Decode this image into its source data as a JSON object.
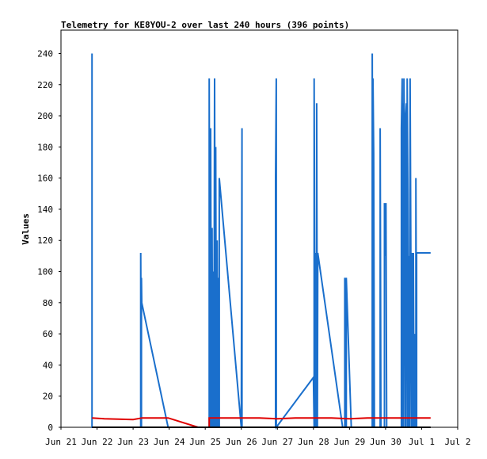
{
  "chart_data": {
    "type": "line",
    "title": "Telemetry for KE8YOU-2 over last 240 hours (396 points)",
    "xlabel": "",
    "ylabel": "Values",
    "x_unit": "days",
    "xlim": [
      0,
      11
    ],
    "ylim": [
      0,
      255
    ],
    "x_ticks": [
      {
        "value": 0,
        "label": "Jun 21"
      },
      {
        "value": 1,
        "label": "Jun 22"
      },
      {
        "value": 2,
        "label": "Jun 23"
      },
      {
        "value": 3,
        "label": "Jun 24"
      },
      {
        "value": 4,
        "label": "Jun 25"
      },
      {
        "value": 5,
        "label": "Jun 26"
      },
      {
        "value": 6,
        "label": "Jun 27"
      },
      {
        "value": 7,
        "label": "Jun 28"
      },
      {
        "value": 8,
        "label": "Jun 29"
      },
      {
        "value": 9,
        "label": "Jun 30"
      },
      {
        "value": 10,
        "label": "Jul 1"
      },
      {
        "value": 11,
        "label": "Jul 2"
      }
    ],
    "y_ticks": [
      0,
      20,
      40,
      60,
      80,
      100,
      120,
      140,
      160,
      180,
      200,
      220,
      240
    ],
    "grid": false,
    "legend": "none",
    "series": [
      {
        "color": "#1a6fcc",
        "points": [
          [
            0.86,
            0
          ],
          [
            0.86,
            240
          ],
          [
            0.86,
            0
          ],
          [
            2.21,
            0
          ],
          [
            2.21,
            112
          ],
          [
            2.23,
            0
          ],
          [
            2.23,
            96
          ],
          [
            2.24,
            80
          ],
          [
            2.97,
            0
          ],
          [
            4.11,
            0
          ],
          [
            4.11,
            224
          ],
          [
            4.13,
            0
          ],
          [
            4.13,
            112
          ],
          [
            4.15,
            192
          ],
          [
            4.17,
            0
          ],
          [
            4.19,
            128
          ],
          [
            4.21,
            0
          ],
          [
            4.21,
            100
          ],
          [
            4.24,
            0
          ],
          [
            4.26,
            224
          ],
          [
            4.28,
            0
          ],
          [
            4.29,
            180
          ],
          [
            4.31,
            0
          ],
          [
            4.33,
            120
          ],
          [
            4.35,
            0
          ],
          [
            4.37,
            96
          ],
          [
            4.39,
            0
          ],
          [
            4.39,
            160
          ],
          [
            5.0,
            0
          ],
          [
            5.02,
            192
          ],
          [
            5.02,
            0
          ],
          [
            5.95,
            0
          ],
          [
            5.95,
            160
          ],
          [
            5.97,
            224
          ],
          [
            5.97,
            0
          ],
          [
            7.0,
            32
          ],
          [
            7.02,
            0
          ],
          [
            7.02,
            224
          ],
          [
            7.05,
            0
          ],
          [
            7.07,
            112
          ],
          [
            7.09,
            0
          ],
          [
            7.09,
            208
          ],
          [
            7.11,
            0
          ],
          [
            7.12,
            112
          ],
          [
            7.81,
            0
          ],
          [
            7.87,
            0
          ],
          [
            7.87,
            96
          ],
          [
            7.89,
            0
          ],
          [
            7.89,
            96
          ],
          [
            7.91,
            0
          ],
          [
            7.91,
            96
          ],
          [
            8.05,
            0
          ],
          [
            8.63,
            0
          ],
          [
            8.63,
            240
          ],
          [
            8.65,
            0
          ],
          [
            8.65,
            224
          ],
          [
            8.67,
            176
          ],
          [
            8.69,
            0
          ],
          [
            8.85,
            0
          ],
          [
            8.85,
            192
          ],
          [
            8.87,
            0
          ],
          [
            8.97,
            0
          ],
          [
            8.97,
            144
          ],
          [
            8.99,
            110
          ],
          [
            9.01,
            144
          ],
          [
            9.03,
            0
          ],
          [
            9.44,
            0
          ],
          [
            9.44,
            192
          ],
          [
            9.46,
            224
          ],
          [
            9.48,
            0
          ],
          [
            9.48,
            208
          ],
          [
            9.5,
            0
          ],
          [
            9.51,
            224
          ],
          [
            9.53,
            180
          ],
          [
            9.55,
            0
          ],
          [
            9.56,
            200
          ],
          [
            9.58,
            208
          ],
          [
            9.6,
            0
          ],
          [
            9.6,
            224
          ],
          [
            9.62,
            150
          ],
          [
            9.64,
            0
          ],
          [
            9.65,
            110
          ],
          [
            9.67,
            0
          ],
          [
            9.68,
            224
          ],
          [
            9.7,
            112
          ],
          [
            9.72,
            0
          ],
          [
            9.73,
            112
          ],
          [
            9.75,
            0
          ],
          [
            9.77,
            112
          ],
          [
            9.79,
            0
          ],
          [
            9.8,
            60
          ],
          [
            9.82,
            0
          ],
          [
            9.84,
            0
          ],
          [
            9.84,
            160
          ],
          [
            9.86,
            0
          ],
          [
            9.86,
            112
          ],
          [
            10.25,
            112
          ]
        ]
      },
      {
        "color": "#e00000",
        "points": [
          [
            0.86,
            6
          ],
          [
            1.2,
            5.5
          ],
          [
            2.0,
            5
          ],
          [
            2.25,
            6
          ],
          [
            2.97,
            6
          ],
          [
            3.8,
            0
          ],
          [
            4.11,
            0
          ],
          [
            4.11,
            6
          ],
          [
            5.5,
            6
          ],
          [
            6.0,
            5.5
          ],
          [
            6.5,
            6
          ],
          [
            7.5,
            6
          ],
          [
            8.0,
            5.5
          ],
          [
            8.5,
            6
          ],
          [
            9.5,
            6
          ],
          [
            10.25,
            6
          ]
        ]
      },
      {
        "color": "#000000",
        "points": [
          [
            0.86,
            0
          ],
          [
            10.25,
            0
          ]
        ]
      }
    ]
  }
}
